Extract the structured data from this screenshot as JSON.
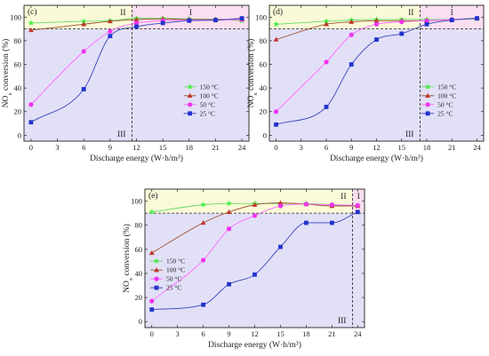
{
  "colors": {
    "s150": "#44ee44",
    "s100": "#c0392b",
    "s50": "#ee33ee",
    "s25": "#2233cc",
    "c150": "#66dd66",
    "c100": "#a0522d",
    "c50": "#ff66ff",
    "c25": "#3344bb",
    "c150e": "#99dd66",
    "c50e": "#cc55ee",
    "c25e": "#1f2fa0",
    "s100e": "#a0522d",
    "s50e": "#b060e0",
    "regionIII": "#e2e0f7",
    "regionII": "#fafad9",
    "regionI": "#f9dff0"
  },
  "chart_data": [
    {
      "id": "c",
      "type": "line",
      "panel_label": "(c)",
      "xlabel": "Discharge energy (W·h/m³)",
      "ylabel": "NOx conversion (%)",
      "ylabel_main": "NO",
      "ylabel_sub": "x",
      "ylabel_rest": " conversion (%)",
      "xlim": [
        -0.8,
        24.8
      ],
      "ylim": [
        -5,
        110
      ],
      "xticks": [
        "0",
        "3",
        "6",
        "9",
        "12",
        "15",
        "18",
        "21",
        "24"
      ],
      "yticks": [
        "0",
        "20",
        "40",
        "60",
        "80",
        "100"
      ],
      "threshold_y": 90,
      "divider_x": 11.5,
      "region_labels": [
        "I",
        "II",
        "III"
      ],
      "legend": [
        "150 °C",
        "100 °C",
        "50 °C",
        "25 °C"
      ],
      "series": [
        {
          "name": "150 °C",
          "marker": "star",
          "x": [
            0,
            6,
            9,
            12,
            15,
            18,
            21,
            24
          ],
          "values": [
            95,
            96.5,
            97,
            99,
            99,
            98.5,
            98,
            97
          ]
        },
        {
          "name": "100 °C",
          "marker": "triangle",
          "x": [
            0,
            6,
            9,
            12,
            15,
            18,
            21,
            24
          ],
          "values": [
            89,
            94,
            96.5,
            98,
            98.5,
            98,
            98,
            98
          ]
        },
        {
          "name": "50 °C",
          "marker": "circle",
          "x": [
            0,
            6,
            9,
            12,
            15,
            18,
            21,
            24
          ],
          "values": [
            26,
            71,
            88,
            95,
            97,
            97.5,
            97.5,
            98
          ]
        },
        {
          "name": "25 °C",
          "marker": "square",
          "x": [
            0,
            6,
            9,
            12,
            15,
            18,
            21,
            24
          ],
          "values": [
            11,
            39,
            84,
            92,
            95,
            97,
            97.5,
            99
          ]
        }
      ]
    },
    {
      "id": "d",
      "type": "line",
      "panel_label": "(d)",
      "xlabel": "Discharge energy (W·h/m³)",
      "ylabel": "NOx conversion (%)",
      "ylabel_main": "NO",
      "ylabel_sub": "x",
      "ylabel_rest": " conversion (%)",
      "xlim": [
        -0.8,
        24.8
      ],
      "ylim": [
        -5,
        110
      ],
      "xticks": [
        "0",
        "3",
        "6",
        "9",
        "12",
        "15",
        "18",
        "21",
        "24"
      ],
      "yticks": [
        "0",
        "20",
        "40",
        "60",
        "80",
        "100"
      ],
      "threshold_y": 90,
      "divider_x": 17.2,
      "region_labels": [
        "I",
        "II",
        "III"
      ],
      "legend": [
        "150 °C",
        "100 °C",
        "50 °C",
        "25 °C"
      ],
      "series": [
        {
          "name": "150 °C",
          "marker": "star",
          "x": [
            0,
            6,
            9,
            12,
            15,
            18,
            21,
            24
          ],
          "values": [
            94,
            96.5,
            97.5,
            98,
            98,
            98,
            98,
            98.5
          ]
        },
        {
          "name": "100 °C",
          "marker": "triangle",
          "x": [
            0,
            6,
            9,
            12,
            15,
            18,
            21,
            24
          ],
          "values": [
            81,
            94,
            96,
            97,
            97,
            97,
            98,
            99
          ]
        },
        {
          "name": "50 °C",
          "marker": "circle",
          "x": [
            0,
            6,
            9,
            12,
            15,
            18,
            21,
            24
          ],
          "values": [
            20,
            62,
            85,
            94,
            96,
            97,
            98,
            99
          ]
        },
        {
          "name": "25 °C",
          "marker": "square",
          "x": [
            0,
            6,
            9,
            12,
            15,
            18,
            21,
            24
          ],
          "values": [
            9,
            24,
            60,
            81,
            86,
            94,
            97.5,
            99
          ]
        }
      ]
    },
    {
      "id": "e",
      "type": "line",
      "panel_label": "(e)",
      "xlabel": "Discharge energy (W·h/m³)",
      "ylabel": "NOx conversion (%)",
      "ylabel_main": "NO",
      "ylabel_sub": "x",
      "ylabel_rest": " conversion (%)",
      "xlim": [
        -0.8,
        24.8
      ],
      "ylim": [
        -5,
        110
      ],
      "xticks": [
        "0",
        "3",
        "6",
        "9",
        "12",
        "15",
        "18",
        "21",
        "24"
      ],
      "yticks": [
        "0",
        "20",
        "40",
        "60",
        "80",
        "100"
      ],
      "threshold_y": 90,
      "divider_x": 23.4,
      "region_labels": [
        "I",
        "II",
        "III"
      ],
      "legend": [
        "150 °C",
        "100 °C",
        "50 °C",
        "25 °C"
      ],
      "series": [
        {
          "name": "150 °C",
          "marker": "star",
          "x": [
            0,
            6,
            9,
            12,
            15,
            18,
            21,
            24
          ],
          "values": [
            91,
            97,
            98,
            98,
            98,
            98,
            97,
            96
          ]
        },
        {
          "name": "100 °C",
          "marker": "triangle",
          "x": [
            0,
            6,
            9,
            12,
            15,
            18,
            21,
            24
          ],
          "values": [
            57,
            82,
            91,
            97,
            98.5,
            97.5,
            96,
            96
          ]
        },
        {
          "name": "50 °C",
          "marker": "circle",
          "x": [
            0,
            6,
            9,
            12,
            15,
            18,
            21,
            24
          ],
          "values": [
            17,
            51,
            77,
            88,
            96,
            97.5,
            97,
            96.5
          ]
        },
        {
          "name": "25 °C",
          "marker": "square",
          "x": [
            0,
            6,
            9,
            12,
            15,
            18,
            21,
            24
          ],
          "values": [
            10,
            14,
            31,
            39,
            62,
            82,
            82,
            91
          ]
        }
      ]
    }
  ]
}
